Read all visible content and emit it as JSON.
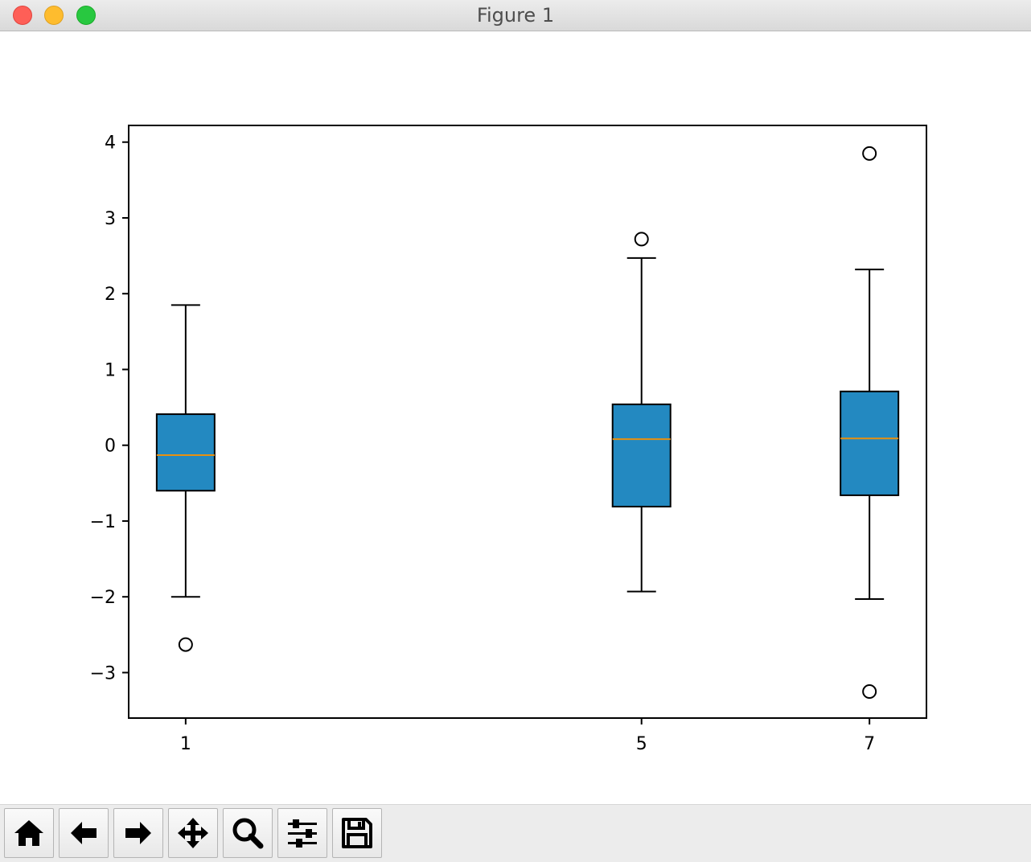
{
  "window": {
    "title": "Figure 1"
  },
  "toolbar": {
    "buttons": [
      {
        "name": "home",
        "icon": "home-icon"
      },
      {
        "name": "back",
        "icon": "arrow-left-icon"
      },
      {
        "name": "forward",
        "icon": "arrow-right-icon"
      },
      {
        "name": "pan",
        "icon": "move-icon"
      },
      {
        "name": "zoom",
        "icon": "magnifier-icon"
      },
      {
        "name": "configure-subplots",
        "icon": "sliders-icon"
      },
      {
        "name": "save",
        "icon": "floppy-disk-icon"
      }
    ]
  },
  "colors": {
    "box_fill": "#2389c1",
    "median": "#e8900f",
    "stroke": "#000000"
  },
  "chart_data": {
    "type": "box",
    "positions": [
      1,
      5,
      7
    ],
    "x_tick_labels": [
      "1",
      "5",
      "7"
    ],
    "xlim": [
      0.5,
      7.5
    ],
    "ylim": [
      -3.6,
      4.22
    ],
    "y_ticks": [
      4,
      3,
      2,
      1,
      0,
      -1,
      -2,
      -3
    ],
    "y_tick_labels": [
      "4",
      "3",
      "2",
      "1",
      "0",
      "−1",
      "−2",
      "−3"
    ],
    "grid": false,
    "title": "",
    "xlabel": "",
    "ylabel": "",
    "boxes": [
      {
        "position": 1,
        "whisker_low": -2.0,
        "q1": -0.6,
        "median": -0.13,
        "q3": 0.41,
        "whisker_high": 1.85,
        "fliers": [
          -2.63
        ]
      },
      {
        "position": 5,
        "whisker_low": -1.93,
        "q1": -0.81,
        "median": 0.08,
        "q3": 0.54,
        "whisker_high": 2.47,
        "fliers": [
          2.72
        ]
      },
      {
        "position": 7,
        "whisker_low": -2.03,
        "q1": -0.66,
        "median": 0.09,
        "q3": 0.71,
        "whisker_high": 2.32,
        "fliers": [
          3.85,
          -3.25
        ]
      }
    ]
  }
}
